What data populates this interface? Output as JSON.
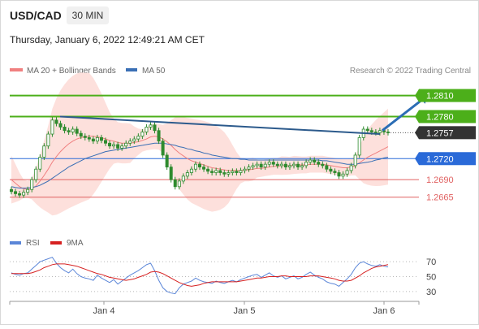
{
  "header": {
    "symbol": "USD/CAD",
    "timeframe": "30 MIN",
    "datetime": "Thursday, January 6, 2022 12:49:21 AM CET"
  },
  "credit": "Research © 2022 Trading Central",
  "colors": {
    "candle": "#2e8b2e",
    "bollinger_fill": "#fde0dc",
    "ma20": "#f08080",
    "ma50": "#3a6fb5",
    "trendline": "#2c5a8c",
    "resistance": "#4caf1a",
    "pivot": "#2a6ad8",
    "support": "#e06060",
    "last_price": "#333333",
    "arrow": "#2c6db5",
    "rsi": "#5b86d8",
    "rsi_ma": "#d62020",
    "axis_text": "#444444"
  },
  "chart_data": [
    {
      "type": "candlestick",
      "legend": [
        {
          "name": "MA 20 + Bollinger Bands",
          "color": "#f08080"
        },
        {
          "name": "MA 50",
          "color": "#3a6fb5"
        }
      ],
      "legend_placement": "top-left",
      "x_tick_labels": [
        "Jan 4",
        "Jan 5",
        "Jan 6"
      ],
      "ylim": [
        1.2645,
        1.2835
      ],
      "levels": [
        {
          "label": "1.2810",
          "value": 1.281,
          "kind": "resistance"
        },
        {
          "label": "1.2780",
          "value": 1.278,
          "kind": "resistance"
        },
        {
          "label": "1.2757",
          "value": 1.2757,
          "kind": "last"
        },
        {
          "label": "1.2720",
          "value": 1.272,
          "kind": "pivot"
        },
        {
          "label": "1.2690",
          "value": 1.269,
          "kind": "support"
        },
        {
          "label": "1.2665",
          "value": 1.2665,
          "kind": "support"
        }
      ],
      "close": [
        1.2673,
        1.267,
        1.2668,
        1.2672,
        1.2676,
        1.269,
        1.2705,
        1.2722,
        1.2738,
        1.2755,
        1.2775,
        1.277,
        1.2765,
        1.276,
        1.2758,
        1.2762,
        1.2756,
        1.2752,
        1.275,
        1.2748,
        1.2745,
        1.275,
        1.2746,
        1.2742,
        1.2738,
        1.274,
        1.2735,
        1.2738,
        1.2742,
        1.2745,
        1.2748,
        1.2752,
        1.2758,
        1.2765,
        1.2768,
        1.276,
        1.2745,
        1.2725,
        1.2708,
        1.269,
        1.268,
        1.2688,
        1.2695,
        1.27,
        1.2705,
        1.2712,
        1.2708,
        1.2705,
        1.2702,
        1.27,
        1.2703,
        1.27,
        1.2698,
        1.27,
        1.2702,
        1.27,
        1.2703,
        1.2705,
        1.2708,
        1.271,
        1.2712,
        1.2708,
        1.2712,
        1.2715,
        1.2712,
        1.271,
        1.2712,
        1.2708,
        1.271,
        1.2712,
        1.2708,
        1.271,
        1.2715,
        1.2718,
        1.2715,
        1.2712,
        1.271,
        1.2705,
        1.2702,
        1.27,
        1.2695,
        1.2698,
        1.2703,
        1.271,
        1.2725,
        1.275,
        1.2762,
        1.276,
        1.2758,
        1.2757,
        1.276,
        1.2758,
        1.2757
      ],
      "ma20": [
        1.269,
        1.2685,
        1.268,
        1.2677,
        1.2676,
        1.2677,
        1.2681,
        1.2688,
        1.2696,
        1.2705,
        1.2715,
        1.2723,
        1.273,
        1.2736,
        1.2741,
        1.2745,
        1.2748,
        1.275,
        1.2751,
        1.2752,
        1.2752,
        1.2751,
        1.275,
        1.2748,
        1.2746,
        1.2745,
        1.2743,
        1.2742,
        1.2742,
        1.2742,
        1.2743,
        1.2744,
        1.2746,
        1.2748,
        1.2751,
        1.2752,
        1.2751,
        1.2748,
        1.2744,
        1.2739,
        1.2733,
        1.2728,
        1.2724,
        1.272,
        1.2717,
        1.2715,
        1.2713,
        1.2711,
        1.2709,
        1.2707,
        1.2706,
        1.2705,
        1.2704,
        1.2703,
        1.2703,
        1.2703,
        1.2703,
        1.2704,
        1.2704,
        1.2705,
        1.2706,
        1.2706,
        1.2707,
        1.2708,
        1.2709,
        1.2709,
        1.271,
        1.271,
        1.271,
        1.2711,
        1.2711,
        1.2711,
        1.2711,
        1.2712,
        1.2712,
        1.2712,
        1.2712,
        1.2711,
        1.271,
        1.2709,
        1.2708,
        1.2707,
        1.2707,
        1.2708,
        1.271,
        1.2714,
        1.2718,
        1.2722,
        1.2725,
        1.2728,
        1.2731,
        1.2734,
        1.2737
      ],
      "ma50": [
        1.268,
        1.2679,
        1.2678,
        1.2678,
        1.2678,
        1.2679,
        1.268,
        1.2682,
        1.2685,
        1.2688,
        1.2692,
        1.2696,
        1.27,
        1.2704,
        1.2708,
        1.2711,
        1.2714,
        1.2717,
        1.272,
        1.2722,
        1.2724,
        1.2726,
        1.2728,
        1.273,
        1.2731,
        1.2732,
        1.2733,
        1.2734,
        1.2735,
        1.2736,
        1.2737,
        1.2738,
        1.2739,
        1.274,
        1.2741,
        1.2742,
        1.2742,
        1.2742,
        1.2741,
        1.274,
        1.2739,
        1.2737,
        1.2736,
        1.2734,
        1.2733,
        1.2731,
        1.273,
        1.2728,
        1.2727,
        1.2725,
        1.2724,
        1.2723,
        1.2722,
        1.2721,
        1.272,
        1.272,
        1.2719,
        1.2719,
        1.2718,
        1.2718,
        1.2718,
        1.2718,
        1.2718,
        1.2718,
        1.2718,
        1.2718,
        1.2718,
        1.2718,
        1.2718,
        1.2718,
        1.2718,
        1.2718,
        1.2718,
        1.2718,
        1.2718,
        1.2718,
        1.2717,
        1.2717,
        1.2716,
        1.2715,
        1.2714,
        1.2713,
        1.2712,
        1.2712,
        1.2712,
        1.2713,
        1.2714,
        1.2715,
        1.2716,
        1.2718,
        1.2719,
        1.2721,
        1.2722
      ],
      "trendline": [
        [
          0,
          1.278
        ],
        [
          90,
          1.2755
        ]
      ],
      "arrow": {
        "from": [
          90,
          1.276
        ],
        "to": [
          102,
          1.2808
        ]
      }
    },
    {
      "type": "line",
      "series": [
        {
          "name": "RSI",
          "color": "#5b86d8",
          "values": [
            55,
            53,
            52,
            54,
            55,
            60,
            65,
            70,
            72,
            74,
            76,
            68,
            62,
            58,
            55,
            60,
            54,
            50,
            48,
            47,
            45,
            52,
            48,
            45,
            42,
            46,
            40,
            44,
            48,
            52,
            55,
            58,
            62,
            66,
            68,
            58,
            45,
            35,
            30,
            28,
            27,
            35,
            40,
            42,
            44,
            48,
            45,
            43,
            42,
            41,
            44,
            42,
            41,
            43,
            45,
            43,
            46,
            48,
            50,
            52,
            53,
            49,
            52,
            55,
            51,
            49,
            51,
            47,
            49,
            51,
            47,
            49,
            53,
            56,
            52,
            49,
            47,
            43,
            41,
            40,
            37,
            42,
            47,
            53,
            62,
            68,
            70,
            67,
            65,
            64,
            66,
            64,
            63
          ]
        },
        {
          "name": "9MA",
          "color": "#d62020",
          "values": [
            54,
            54,
            54,
            54,
            54,
            55,
            57,
            59,
            62,
            64,
            66,
            67,
            67,
            67,
            66,
            65,
            64,
            62,
            60,
            58,
            56,
            54,
            53,
            51,
            49,
            48,
            47,
            46,
            45,
            46,
            47,
            49,
            51,
            53,
            56,
            57,
            56,
            54,
            51,
            48,
            45,
            42,
            40,
            38,
            37,
            38,
            39,
            41,
            42,
            43,
            43,
            43,
            43,
            43,
            43,
            43,
            44,
            45,
            46,
            47,
            48,
            48,
            49,
            50,
            50,
            50,
            51,
            51,
            50,
            50,
            50,
            50,
            50,
            51,
            51,
            51,
            50,
            49,
            48,
            47,
            45,
            44,
            44,
            45,
            48,
            51,
            55,
            58,
            61,
            63,
            64,
            65,
            66
          ]
        }
      ],
      "ylim": [
        20,
        80
      ],
      "y_ticks": [
        {
          "label": "70",
          "value": 70
        },
        {
          "label": "50",
          "value": 50
        },
        {
          "label": "30",
          "value": 30
        }
      ],
      "legend_placement": "top-left"
    }
  ]
}
